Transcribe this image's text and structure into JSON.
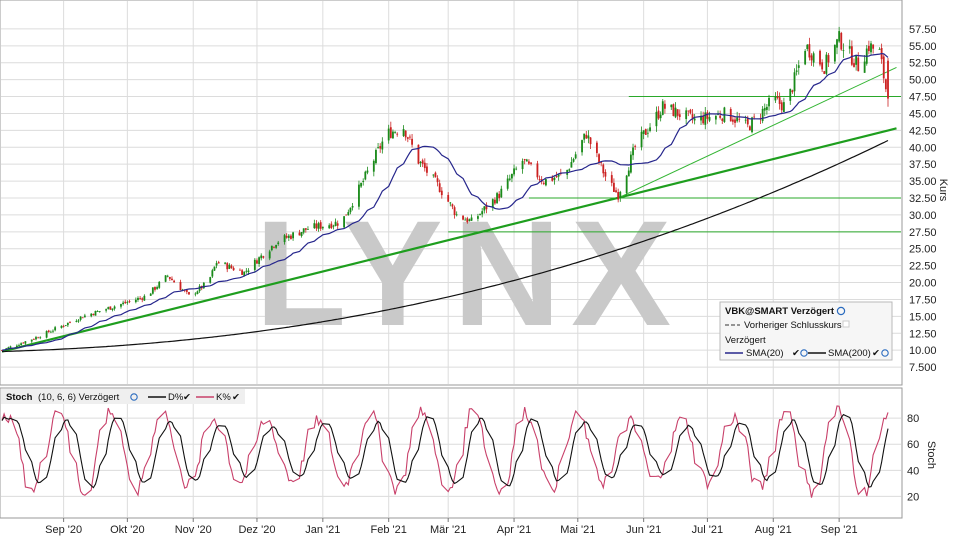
{
  "chart_data": [
    {
      "type": "candlestick",
      "watermark": "LYNX",
      "ylabel": "Kurs",
      "ylim": [
        5.0,
        60.0
      ],
      "yticks": [
        "7.500",
        "10.00",
        "12.50",
        "15.00",
        "17.50",
        "20.00",
        "22.50",
        "25.00",
        "27.50",
        "30.00",
        "32.50",
        "35.00",
        "37.50",
        "40.00",
        "42.50",
        "45.00",
        "47.50",
        "50.00",
        "52.50",
        "55.00",
        "57.50"
      ],
      "xticks": [
        "Sep '20",
        "Okt '20",
        "Nov '20",
        "Dez '20",
        "Jan '21",
        "Feb '21",
        "Mär '21",
        "Apr '21",
        "Mai '21",
        "Jun '21",
        "Jul '21",
        "Aug '21",
        "Sep '21"
      ],
      "date_range": [
        "2020-08-03",
        "2021-09-24"
      ],
      "price_path": [
        [
          "2020-08-03",
          10.0
        ],
        [
          "2020-08-20",
          12.0
        ],
        [
          "2020-09-10",
          15.0
        ],
        [
          "2020-09-25",
          16.5
        ],
        [
          "2020-10-10",
          18.0
        ],
        [
          "2020-10-20",
          21.0
        ],
        [
          "2020-10-30",
          18.0
        ],
        [
          "2020-11-08",
          20.0
        ],
        [
          "2020-11-12",
          23.0
        ],
        [
          "2020-11-25",
          21.5
        ],
        [
          "2020-12-10",
          26.0
        ],
        [
          "2020-12-25",
          28.0
        ],
        [
          "2021-01-10",
          29.0
        ],
        [
          "2021-01-20",
          35.0
        ],
        [
          "2021-01-31",
          42.0
        ],
        [
          "2021-02-08",
          43.0
        ],
        [
          "2021-02-15",
          38.0
        ],
        [
          "2021-02-25",
          34.0
        ],
        [
          "2021-03-05",
          30.0
        ],
        [
          "2021-03-12",
          29.0
        ],
        [
          "2021-03-25",
          33.0
        ],
        [
          "2021-04-05",
          38.0
        ],
        [
          "2021-04-15",
          35.0
        ],
        [
          "2021-04-25",
          36.0
        ],
        [
          "2021-05-05",
          42.0
        ],
        [
          "2021-05-15",
          35.0
        ],
        [
          "2021-05-20",
          33.0
        ],
        [
          "2021-05-28",
          40.0
        ],
        [
          "2021-06-10",
          46.0
        ],
        [
          "2021-06-25",
          44.0
        ],
        [
          "2021-07-10",
          45.0
        ],
        [
          "2021-07-20",
          43.0
        ],
        [
          "2021-08-01",
          47.0
        ],
        [
          "2021-08-07",
          46.0
        ],
        [
          "2021-08-12",
          51.0
        ],
        [
          "2021-08-16",
          55.0
        ],
        [
          "2021-08-25",
          52.0
        ],
        [
          "2021-09-01",
          56.0
        ],
        [
          "2021-09-10",
          52.0
        ],
        [
          "2021-09-15",
          55.0
        ],
        [
          "2021-09-20",
          54.0
        ],
        [
          "2021-09-24",
          47.0
        ]
      ],
      "trendlines": [
        {
          "from": [
            "2020-08-03",
            9.8
          ],
          "to": [
            "2021-09-28",
            42.8
          ],
          "color": "#1e9e1e",
          "width": 2.2
        },
        {
          "from": [
            "2021-05-20",
            32.5
          ],
          "to": [
            "2021-09-28",
            51.8
          ],
          "color": "#33b533",
          "width": 1
        }
      ],
      "horizontal_levels": [
        {
          "value": 47.5,
          "from": "2021-05-25"
        },
        {
          "value": 32.5,
          "from": "2021-04-08"
        },
        {
          "value": 27.5,
          "from": "2021-03-01"
        }
      ],
      "legend": {
        "placement": "bottom-right",
        "title": "VBK@SMART Verzögert",
        "prev_close": "Vorheriger Schlusskurs",
        "section": "Verzögert",
        "sma20": "SMA(20)",
        "sma200": "SMA(200)"
      },
      "colors": {
        "up": "#1a8a1a",
        "down": "#cc2222",
        "sma20": "#26268c",
        "sma200": "#111111",
        "levels": "#2aa82a"
      }
    },
    {
      "type": "line",
      "title": "Stoch",
      "params": "(10, 6, 6) Verzögert",
      "ylabel": "Stoch",
      "ylim": [
        5,
        100
      ],
      "yticks": [
        "20",
        "40",
        "60",
        "80"
      ],
      "series": [
        {
          "name": "D%",
          "color": "#111111"
        },
        {
          "name": "K%",
          "color": "#c8406a"
        }
      ]
    }
  ]
}
